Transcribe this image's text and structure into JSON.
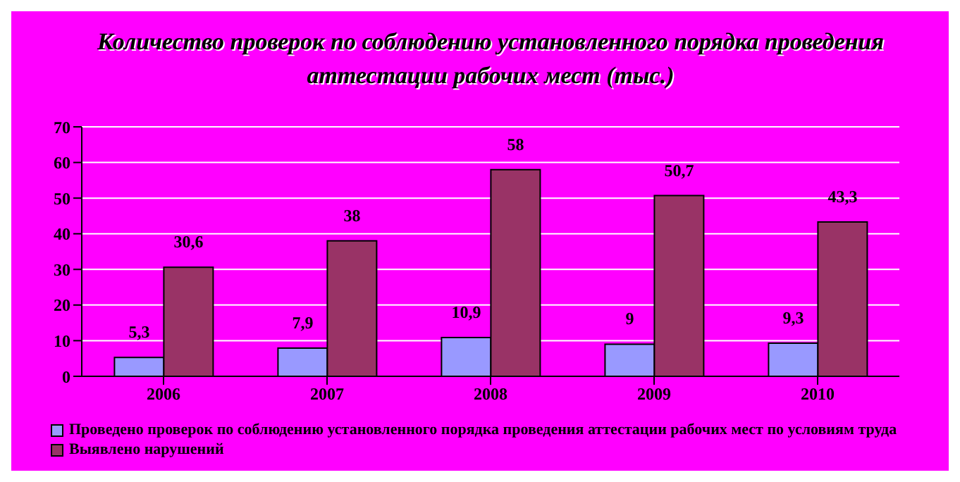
{
  "chart_data": {
    "type": "bar",
    "title": "Количество проверок по соблюдению установленного порядка проведения аттестации рабочих мест (тыс.)",
    "categories": [
      "2006",
      "2007",
      "2008",
      "2009",
      "2010"
    ],
    "series": [
      {
        "name": "Проведено проверок по соблюдению установленного порядка проведения аттестации рабочих мест по условиям труда",
        "color": "#9999ff",
        "values": [
          5.3,
          7.9,
          10.9,
          9,
          9.3
        ],
        "value_labels": [
          "5,3",
          "7,9",
          "10,9",
          "9",
          "9,3"
        ]
      },
      {
        "name": "Выявлено нарушений",
        "color": "#993366",
        "values": [
          30.6,
          38,
          58,
          50.7,
          43.3
        ],
        "value_labels": [
          "30,6",
          "38",
          "58",
          "50,7",
          "43,3"
        ]
      }
    ],
    "ylim": [
      0,
      70
    ],
    "yticks": [
      0,
      10,
      20,
      30,
      40,
      50,
      60,
      70
    ],
    "grid": "y",
    "legend": "bottom"
  }
}
